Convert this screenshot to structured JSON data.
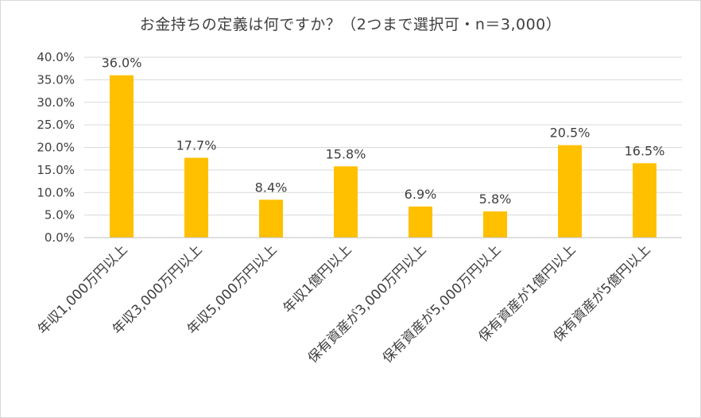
{
  "chart_data": {
    "type": "bar",
    "title": "お金持ちの定義は何ですか？（2つまで選択可・n＝3,000）",
    "categories": [
      "年収1,000万円以上",
      "年収3,000万円以上",
      "年収5,000万円以上",
      "年収1億円以上",
      "保有資産が3,000万円以上",
      "保有資産が5,000万円以上",
      "保有資産が1億円以上",
      "保有資産が5億円以上"
    ],
    "values": [
      36.0,
      17.7,
      8.4,
      15.8,
      6.9,
      5.8,
      20.5,
      16.5
    ],
    "data_labels": [
      "36.0%",
      "17.7%",
      "8.4%",
      "15.8%",
      "6.9%",
      "5.8%",
      "20.5%",
      "16.5%"
    ],
    "ylim": [
      0,
      40
    ],
    "yticks": [
      "0.0%",
      "5.0%",
      "10.0%",
      "15.0%",
      "20.0%",
      "25.0%",
      "30.0%",
      "35.0%",
      "40.0%"
    ],
    "grid": true,
    "bar_color": "#FFC000",
    "grid_color": "#d9d9d9",
    "xlabel": "",
    "ylabel": ""
  }
}
